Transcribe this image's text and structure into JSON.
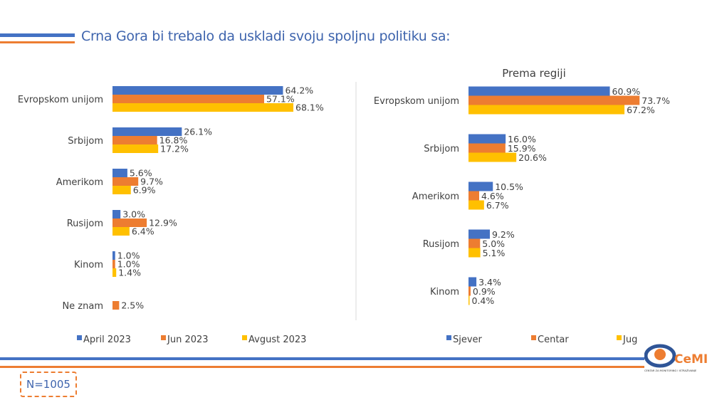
{
  "title": "Crna Gora bi trebalo da uskladi svoju spoljnu politiku sa:",
  "sample": "N=1005",
  "logo": {
    "text": "CeMI",
    "subtitle": "CENTAR ZA MONITORING I ISTRAŽIVANJE"
  },
  "colors": {
    "blue": "#4472c4",
    "orange": "#ed7d31",
    "yellow": "#ffc000",
    "title": "#3e64ad"
  },
  "chart_data": [
    {
      "type": "bar",
      "orientation": "horizontal",
      "title": "",
      "categories": [
        "Evropskom unijom",
        "Srbijom",
        "Amerikom",
        "Rusijom",
        "Kinom",
        "Ne znam"
      ],
      "series": [
        {
          "name": "April 2023",
          "color": "#4472c4",
          "values": [
            64.2,
            26.1,
            5.6,
            3.0,
            1.0,
            null
          ]
        },
        {
          "name": "Jun 2023",
          "color": "#ed7d31",
          "values": [
            57.1,
            16.8,
            9.7,
            12.9,
            1.0,
            2.5
          ]
        },
        {
          "name": "Avgust 2023",
          "color": "#ffc000",
          "values": [
            68.1,
            17.2,
            6.9,
            6.4,
            1.4,
            null
          ]
        }
      ],
      "legend": "bottom",
      "grid": false,
      "unit": "%"
    },
    {
      "type": "bar",
      "orientation": "horizontal",
      "title": "Prema regiji",
      "categories": [
        "Evropskom unijom",
        "Srbijom",
        "Amerikom",
        "Rusijom",
        "Kinom"
      ],
      "series": [
        {
          "name": "Sjever",
          "color": "#4472c4",
          "values": [
            60.9,
            16.0,
            10.5,
            9.2,
            3.4
          ]
        },
        {
          "name": "Centar",
          "color": "#ed7d31",
          "values": [
            73.7,
            15.9,
            4.6,
            5.0,
            0.9
          ]
        },
        {
          "name": "Jug",
          "color": "#ffc000",
          "values": [
            67.2,
            20.6,
            6.7,
            5.1,
            0.4
          ]
        }
      ],
      "legend": "bottom",
      "grid": false,
      "unit": "%"
    }
  ]
}
